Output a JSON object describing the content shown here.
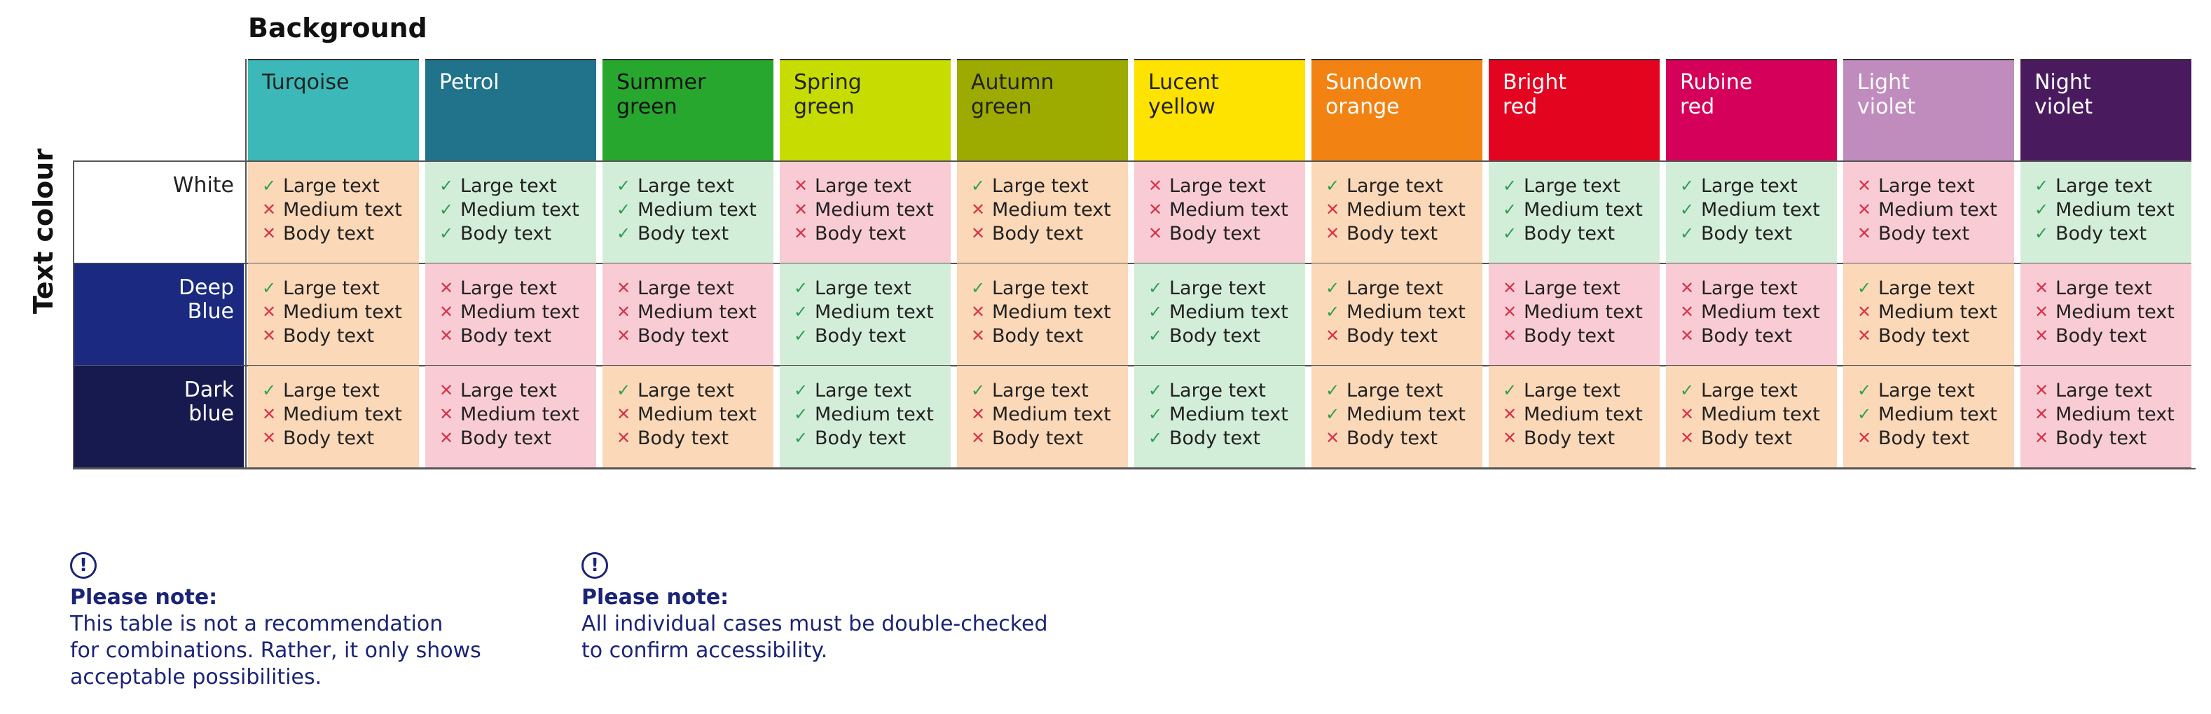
{
  "background_title": "Background",
  "text_colour_title": "Text colour",
  "item_labels": [
    "Large text",
    "Medium text",
    "Body text"
  ],
  "colors": {
    "pass": "#d3eed8",
    "partial": "#fbd8b8",
    "fail": "#f9ccd5",
    "ok_mark": "#2e9e55",
    "fail_mark": "#d8334a",
    "note_text": "#1b2475"
  },
  "backgrounds": [
    {
      "lines": [
        "Turqoise"
      ],
      "color": "#3cb8b8",
      "text": "#222222"
    },
    {
      "lines": [
        "Petrol"
      ],
      "color": "#20738a",
      "text": "#ffffff"
    },
    {
      "lines": [
        "Summer",
        "green"
      ],
      "color": "#27a72d",
      "text": "#111111"
    },
    {
      "lines": [
        "Spring",
        "green"
      ],
      "color": "#c7dc00",
      "text": "#222222"
    },
    {
      "lines": [
        "Autumn",
        "green"
      ],
      "color": "#9daa00",
      "text": "#222222"
    },
    {
      "lines": [
        "Lucent",
        "yellow"
      ],
      "color": "#ffe300",
      "text": "#222222"
    },
    {
      "lines": [
        "Sundown",
        "orange"
      ],
      "color": "#f28212",
      "text": "#ffffff"
    },
    {
      "lines": [
        "Bright",
        "red"
      ],
      "color": "#e30520",
      "text": "#ffffff"
    },
    {
      "lines": [
        "Rubine",
        "red"
      ],
      "color": "#d4005a",
      "text": "#ffffff"
    },
    {
      "lines": [
        "Light",
        "violet"
      ],
      "color": "#c08cbe",
      "text": "#ffffff"
    },
    {
      "lines": [
        "Night",
        "violet"
      ],
      "color": "#4a1a5e",
      "text": "#ffffff"
    }
  ],
  "text_colours": [
    {
      "lines": [
        "White"
      ],
      "color": "#ffffff",
      "text": "#222222",
      "results": [
        [
          true,
          false,
          false
        ],
        [
          true,
          true,
          true
        ],
        [
          true,
          true,
          true
        ],
        [
          false,
          false,
          false
        ],
        [
          true,
          false,
          false
        ],
        [
          false,
          false,
          false
        ],
        [
          true,
          false,
          false
        ],
        [
          true,
          true,
          true
        ],
        [
          true,
          true,
          true
        ],
        [
          false,
          false,
          false
        ],
        [
          true,
          true,
          true
        ]
      ]
    },
    {
      "lines": [
        "Deep",
        "Blue"
      ],
      "color": "#1b2a80",
      "text": "#ffffff",
      "results": [
        [
          true,
          false,
          false
        ],
        [
          false,
          false,
          false
        ],
        [
          false,
          false,
          false
        ],
        [
          true,
          true,
          true
        ],
        [
          true,
          false,
          false
        ],
        [
          true,
          true,
          true
        ],
        [
          true,
          true,
          false
        ],
        [
          false,
          false,
          false
        ],
        [
          false,
          false,
          false
        ],
        [
          true,
          false,
          false
        ],
        [
          false,
          false,
          false
        ]
      ]
    },
    {
      "lines": [
        "Dark",
        "blue"
      ],
      "color": "#171a4e",
      "text": "#ffffff",
      "results": [
        [
          true,
          false,
          false
        ],
        [
          false,
          false,
          false
        ],
        [
          true,
          false,
          false
        ],
        [
          true,
          true,
          true
        ],
        [
          true,
          false,
          false
        ],
        [
          true,
          true,
          true
        ],
        [
          true,
          true,
          false
        ],
        [
          true,
          false,
          false
        ],
        [
          true,
          false,
          false
        ],
        [
          true,
          true,
          false
        ],
        [
          false,
          false,
          false
        ]
      ]
    }
  ],
  "notes": [
    {
      "icon": "!",
      "heading": "Please note:",
      "lines": [
        "This table is not a recommendation",
        "for combinations. Rather, it only shows",
        "acceptable possibilities."
      ]
    },
    {
      "icon": "!",
      "heading": "Please note:",
      "lines": [
        "All individual cases must be double-checked",
        "to confirm accessibility."
      ]
    }
  ]
}
